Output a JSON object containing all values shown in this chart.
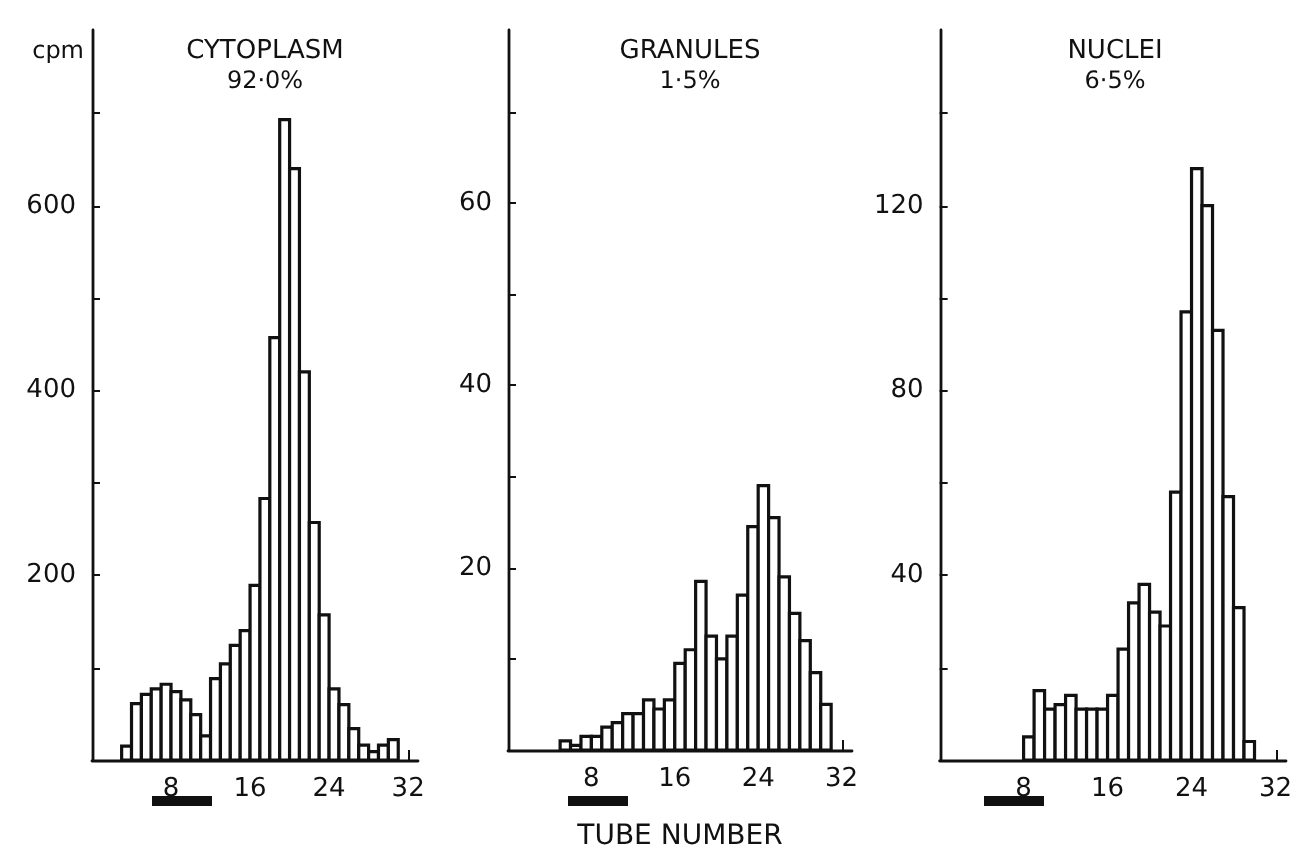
{
  "chart_data": [
    {
      "type": "histogram",
      "title": "CYTOPLASM",
      "subtitle": "92·0%",
      "ylabel": "cpm",
      "color": "#111111",
      "bins": [
        3,
        4,
        5,
        6,
        7,
        8,
        9,
        10,
        11,
        12,
        13,
        14,
        15,
        16,
        17,
        18,
        19,
        20,
        21,
        22,
        23,
        24,
        25,
        26,
        27,
        28,
        29,
        30,
        31
      ],
      "values": [
        15,
        61,
        71,
        77,
        82,
        74,
        65,
        49,
        26,
        88,
        104,
        124,
        140,
        189,
        283,
        457,
        693,
        640,
        420,
        257,
        157,
        77,
        60,
        34,
        16,
        9,
        16,
        22
      ],
      "xlim": [
        0,
        33
      ],
      "xticks": [
        8,
        16,
        24,
        32
      ],
      "ylim": [
        0,
        790
      ],
      "yticks": [
        {
          "value": 100,
          "label": null
        },
        200,
        {
          "value": 300,
          "label": null
        },
        400,
        {
          "value": 500,
          "label": null
        },
        600,
        {
          "value": 700,
          "label": null
        }
      ]
    },
    {
      "type": "histogram",
      "title": "GRANULES",
      "subtitle": "1·5%",
      "xlabel": "TUBE NUMBER",
      "color": "#111111",
      "bins": [
        5,
        6,
        7,
        8,
        9,
        10,
        11,
        12,
        13,
        14,
        15,
        16,
        17,
        18,
        19,
        20,
        21,
        22,
        23,
        24,
        25,
        26,
        27,
        28,
        29,
        30,
        31
      ],
      "values": [
        1,
        0.5,
        1.5,
        1.5,
        2.5,
        3,
        4,
        4,
        5.5,
        4.5,
        5.5,
        9.5,
        11,
        18.5,
        12.5,
        10,
        12.5,
        17,
        24.5,
        29,
        25.5,
        19,
        15,
        12,
        8.5,
        5
      ],
      "xlim": [
        0,
        33
      ],
      "xticks": [
        8,
        16,
        24,
        32
      ],
      "ylim": [
        0,
        79
      ],
      "yticks": [
        {
          "value": 10,
          "label": null
        },
        20,
        {
          "value": 30,
          "label": null
        },
        40,
        {
          "value": 50,
          "label": null
        },
        60,
        {
          "value": 70,
          "label": null
        }
      ]
    },
    {
      "type": "histogram",
      "title": "NUCLEI",
      "subtitle": "6·5%",
      "color": "#111111",
      "bins": [
        8,
        9,
        10,
        11,
        12,
        13,
        14,
        15,
        16,
        17,
        18,
        19,
        20,
        21,
        22,
        23,
        24,
        25,
        26,
        27,
        28,
        29,
        30
      ],
      "values": [
        5,
        15,
        11,
        12,
        14,
        11,
        11,
        11,
        14,
        24,
        34,
        38,
        32,
        29,
        58,
        97,
        128,
        120,
        93,
        57,
        33,
        4
      ],
      "xlim": [
        0,
        33
      ],
      "xticks": [
        8,
        16,
        24,
        32
      ],
      "ylim": [
        0,
        158
      ],
      "yticks": [
        {
          "value": 20,
          "label": null
        },
        40,
        {
          "value": 60,
          "label": null
        },
        80,
        {
          "value": 100,
          "label": null
        },
        120,
        {
          "value": 140,
          "label": null
        }
      ]
    }
  ]
}
